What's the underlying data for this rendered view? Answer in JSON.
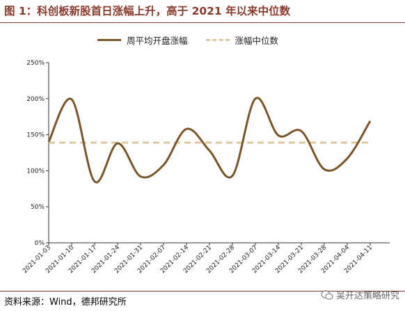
{
  "header": {
    "title": "图 1：科创板新股首日涨幅上升，高于 2021 年以来中位数"
  },
  "footer": {
    "source": "资料来源：Wind，德邦研究所",
    "watermark": "吴开达策略研究"
  },
  "chart_data": {
    "type": "line",
    "title": "图 1：科创板新股首日涨幅上升，高于 2021 年以来中位数",
    "xlabel": "",
    "ylabel": "",
    "ylim": [
      0,
      250
    ],
    "y_ticks": [
      "0%",
      "50%",
      "100%",
      "150%",
      "200%",
      "250%"
    ],
    "y_tick_values": [
      0,
      50,
      100,
      150,
      200,
      250
    ],
    "categories": [
      "2021-01-03",
      "2021-01-10",
      "2021-01-17",
      "2021-01-24",
      "2021-01-31",
      "2021-02-07",
      "2021-02-14",
      "2021-02-21",
      "2021-02-28",
      "2021-03-07",
      "2021-03-14",
      "2021-03-21",
      "2021-03-28",
      "2021-04-04",
      "2021-04-11"
    ],
    "series": [
      {
        "name": "周平均开盘涨幅",
        "style": "solid",
        "color": "#7A5528",
        "values": [
          140,
          199,
          85,
          138,
          92,
          108,
          158,
          128,
          93,
          200,
          149,
          155,
          102,
          117,
          169
        ]
      },
      {
        "name": "涨幅中位数",
        "style": "dashed",
        "color": "#DCC7A1",
        "values": [
          139,
          139,
          139,
          139,
          139,
          139,
          139,
          139,
          139,
          139,
          139,
          139,
          139,
          139,
          139
        ]
      }
    ],
    "grid": false,
    "legend_position": "top"
  }
}
